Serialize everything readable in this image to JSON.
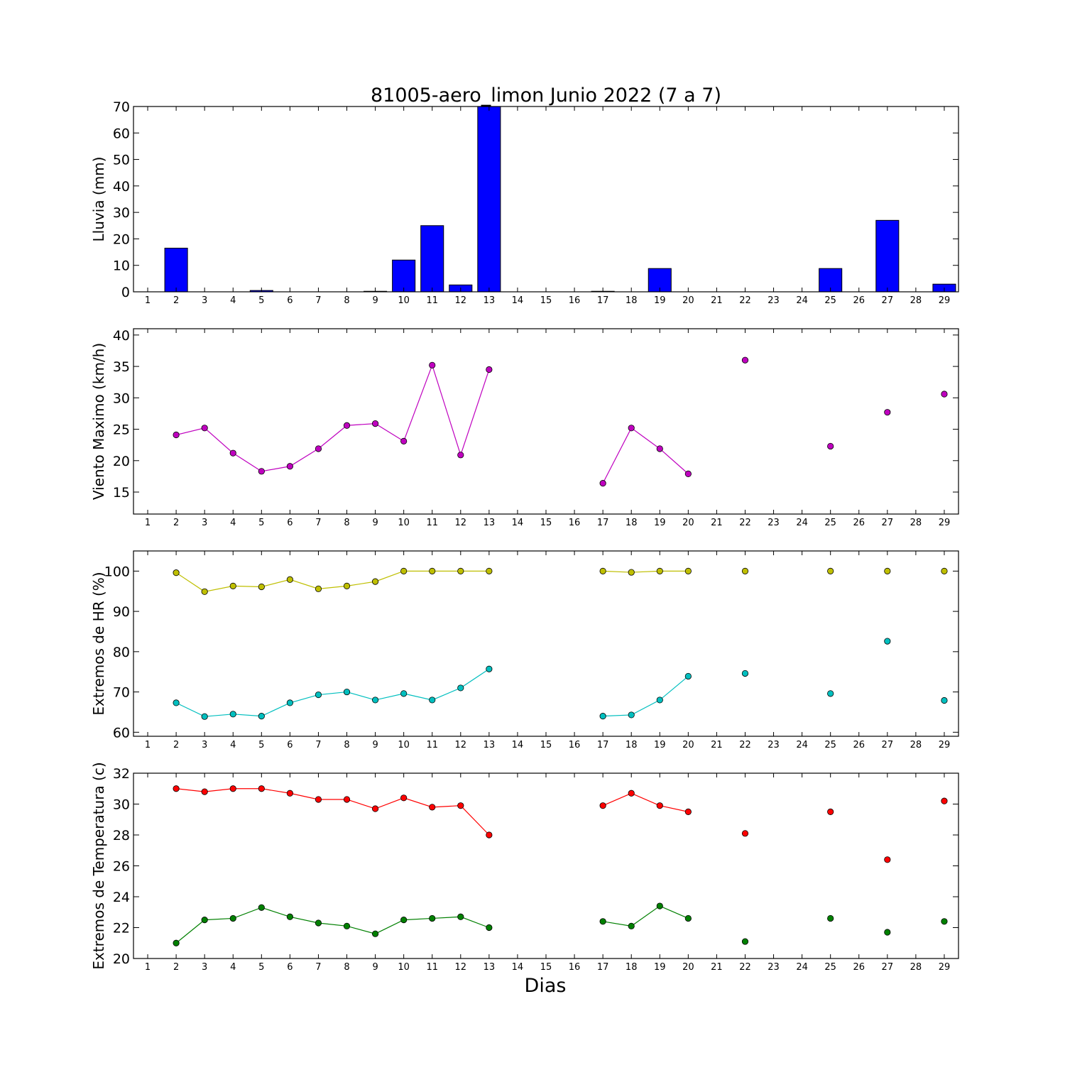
{
  "title": "81005-aero_limon Junio 2022  (7 a 7)",
  "xlabel": "Dias",
  "colors": {
    "rain": "#0000ff",
    "wind": "#bf00bf",
    "hr_max": "#bfbf00",
    "hr_min": "#00bfbf",
    "temp_max": "#ff0000",
    "temp_min": "#008000"
  },
  "chart_data": [
    {
      "type": "bar",
      "ylabel": "Lluvia (mm)",
      "ylim": [
        0,
        70
      ],
      "yticks": [
        0,
        10,
        20,
        30,
        40,
        50,
        60,
        70
      ],
      "xlim": [
        0.5,
        29.5
      ],
      "x": [
        1,
        2,
        3,
        4,
        5,
        6,
        7,
        8,
        9,
        10,
        11,
        12,
        13,
        14,
        15,
        16,
        17,
        18,
        19,
        20,
        21,
        22,
        23,
        24,
        25,
        26,
        27,
        28,
        29
      ],
      "series": [
        {
          "color": "#0000ff",
          "values": [
            0,
            16.5,
            0,
            0,
            0.5,
            0,
            0,
            0,
            0.2,
            12,
            25,
            2.6,
            70,
            0,
            0,
            0,
            0.2,
            0,
            8.8,
            0,
            0,
            0,
            0,
            0,
            8.8,
            0,
            27,
            0,
            2.9
          ]
        }
      ]
    },
    {
      "type": "line",
      "ylabel": "Viento Maximo (km/h)",
      "ylim": [
        11.5,
        41
      ],
      "yticks": [
        15,
        20,
        25,
        30,
        35,
        40
      ],
      "xlim": [
        0.5,
        29.5
      ],
      "x": [
        1,
        2,
        3,
        4,
        5,
        6,
        7,
        8,
        9,
        10,
        11,
        12,
        13,
        14,
        15,
        16,
        17,
        18,
        19,
        20,
        21,
        22,
        23,
        24,
        25,
        26,
        27,
        28,
        29
      ],
      "series": [
        {
          "color": "#bf00bf",
          "values": [
            null,
            24.1,
            25.2,
            21.2,
            18.3,
            19.1,
            21.9,
            25.6,
            25.9,
            23.1,
            35.2,
            20.9,
            34.5,
            null,
            null,
            null,
            16.4,
            25.2,
            21.9,
            17.9,
            null,
            36.0,
            null,
            null,
            22.3,
            null,
            27.7,
            null,
            30.6
          ]
        }
      ]
    },
    {
      "type": "line",
      "ylabel": "Extremos de HR (%)",
      "ylim": [
        59,
        105
      ],
      "yticks": [
        60,
        70,
        80,
        90,
        100
      ],
      "xlim": [
        0.5,
        29.5
      ],
      "x": [
        1,
        2,
        3,
        4,
        5,
        6,
        7,
        8,
        9,
        10,
        11,
        12,
        13,
        14,
        15,
        16,
        17,
        18,
        19,
        20,
        21,
        22,
        23,
        24,
        25,
        26,
        27,
        28,
        29
      ],
      "series": [
        {
          "color": "#bfbf00",
          "values": [
            null,
            99.6,
            94.9,
            96.3,
            96.1,
            97.9,
            95.6,
            96.3,
            97.4,
            100,
            100,
            100,
            100,
            null,
            null,
            null,
            100,
            99.7,
            100,
            100,
            null,
            100,
            null,
            null,
            100,
            null,
            100,
            null,
            100
          ]
        },
        {
          "color": "#00bfbf",
          "values": [
            null,
            67.3,
            63.9,
            64.5,
            64.0,
            67.3,
            69.3,
            70.0,
            68.0,
            69.6,
            68.0,
            71.0,
            75.7,
            null,
            null,
            null,
            64.0,
            64.3,
            68.0,
            73.9,
            null,
            74.6,
            null,
            null,
            69.6,
            null,
            82.6,
            null,
            67.9
          ]
        }
      ]
    },
    {
      "type": "line",
      "ylabel": "Extremos de Temperatura (c)",
      "ylim": [
        20,
        32
      ],
      "yticks": [
        20,
        22,
        24,
        26,
        28,
        30,
        32
      ],
      "xlim": [
        0.5,
        29.5
      ],
      "x": [
        1,
        2,
        3,
        4,
        5,
        6,
        7,
        8,
        9,
        10,
        11,
        12,
        13,
        14,
        15,
        16,
        17,
        18,
        19,
        20,
        21,
        22,
        23,
        24,
        25,
        26,
        27,
        28,
        29
      ],
      "series": [
        {
          "color": "#ff0000",
          "values": [
            null,
            31.0,
            30.8,
            31.0,
            31.0,
            30.7,
            30.3,
            30.3,
            29.7,
            30.4,
            29.8,
            29.9,
            28.0,
            null,
            null,
            null,
            29.9,
            30.7,
            29.9,
            29.5,
            null,
            28.1,
            null,
            null,
            29.5,
            null,
            26.4,
            null,
            30.2
          ]
        },
        {
          "color": "#008000",
          "values": [
            null,
            21.0,
            22.5,
            22.6,
            23.3,
            22.7,
            22.3,
            22.1,
            21.6,
            22.5,
            22.6,
            22.7,
            22.0,
            null,
            null,
            null,
            22.4,
            22.1,
            23.4,
            22.6,
            null,
            21.1,
            null,
            null,
            22.6,
            null,
            21.7,
            null,
            22.4
          ]
        }
      ]
    }
  ]
}
